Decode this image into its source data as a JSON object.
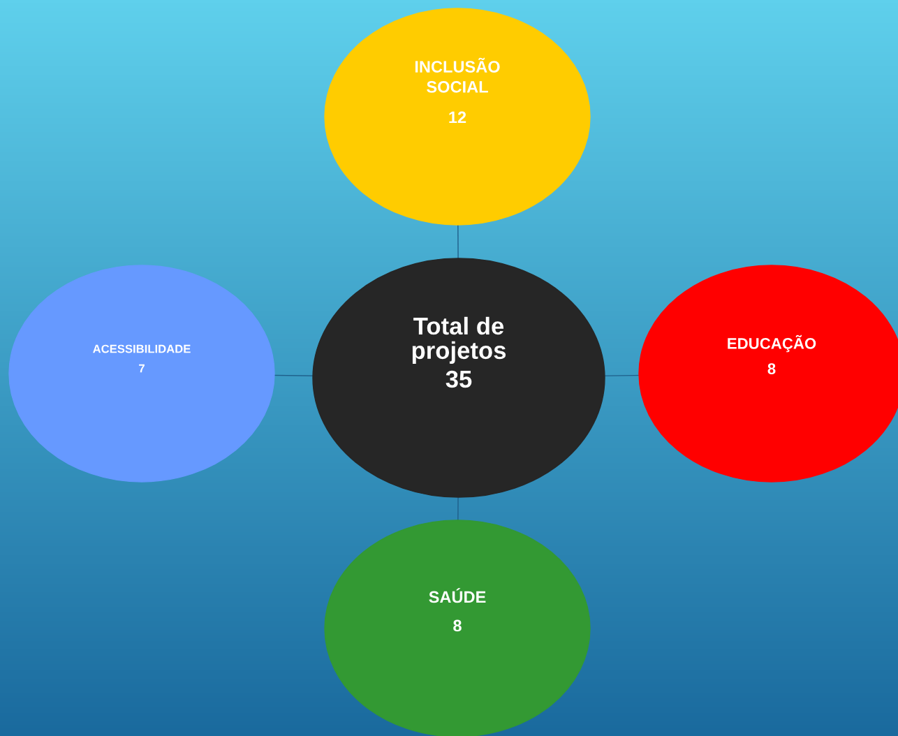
{
  "chart_data": {
    "type": "other",
    "title": "Total de projetos",
    "totals": [
      "35"
    ],
    "color": "#262626",
    "categories": [
      "INCLUSÃO SOCIAL",
      "ACESSIBILIDADE",
      "EDUCAÇÃO",
      "SAÚDE"
    ],
    "values": [
      12,
      7,
      8,
      8
    ],
    "data_labels": true,
    "colors": [
      "#ffcc00",
      "#6699ff",
      "#ff0000",
      "#339933"
    ]
  }
}
